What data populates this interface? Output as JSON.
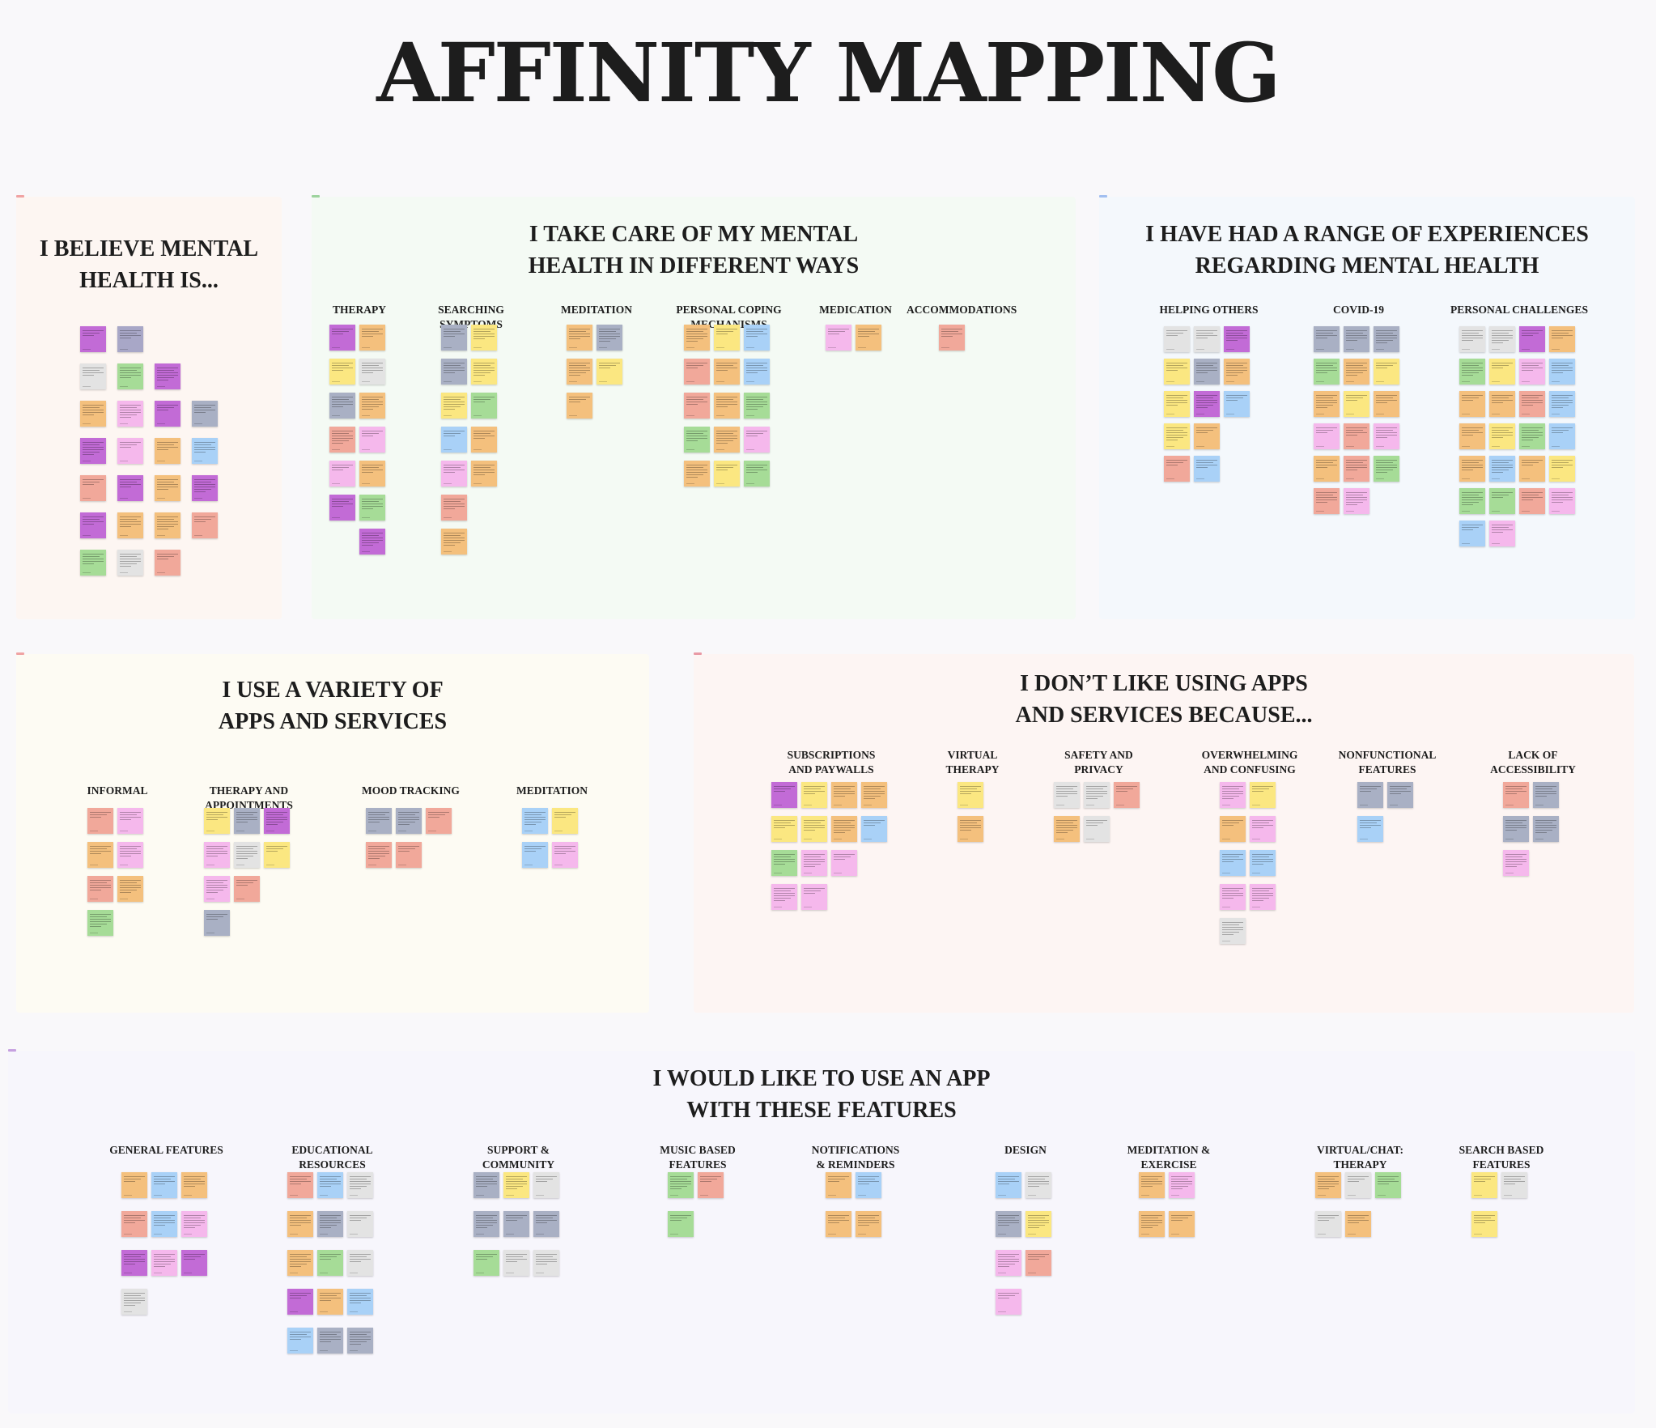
{
  "title": "AFFINITY MAPPING",
  "colors": {
    "purple": "#c26bd6",
    "lavender": "#a8a7c7",
    "slate": "#a9b0c4",
    "yellow": "#fbe781",
    "orange": "#f4c07d",
    "salmon": "#f1a89a",
    "pink": "#f5b8ec",
    "green": "#a6dc97",
    "blue": "#a9d1f7",
    "gray": "#e3e3e3"
  },
  "boards": [
    {
      "id": "believe",
      "title": "I BELIEVE  MENTAL\nHEALTH IS...",
      "bg": "#fdf6f2",
      "tick": "#f0a3a3",
      "columns": [
        {
          "title": "",
          "notes": [
            [
              "purple",
              "lavender"
            ],
            [
              "gray",
              "green",
              "purple"
            ],
            [
              "orange",
              "pink",
              "purple",
              "slate"
            ],
            [
              "purple",
              "pink",
              "orange",
              "blue"
            ],
            [
              "salmon",
              "purple",
              "orange",
              "purple"
            ],
            [
              "purple",
              "orange",
              "orange",
              "salmon"
            ],
            [
              "green",
              "gray",
              "salmon"
            ]
          ]
        }
      ]
    },
    {
      "id": "care",
      "title": "I TAKE CARE OF MY MENTAL\nHEALTH IN DIFFERENT WAYS",
      "bg": "#f4faf4",
      "tick": "#9ed39e",
      "columns": [
        {
          "title": "THERAPY",
          "notes": [
            [
              "purple",
              "orange"
            ],
            [
              "yellow",
              "gray"
            ],
            [
              "slate",
              "orange"
            ],
            [
              "salmon",
              "pink"
            ],
            [
              "pink",
              "orange"
            ],
            [
              "purple",
              "green"
            ],
            [
              "",
              "purple"
            ]
          ]
        },
        {
          "title": "SEARCHING\nSYMPTOMS",
          "notes": [
            [
              "slate",
              "yellow"
            ],
            [
              "slate",
              "yellow"
            ],
            [
              "yellow",
              "green"
            ],
            [
              "blue",
              "orange"
            ],
            [
              "pink",
              "orange"
            ],
            [
              "salmon",
              ""
            ],
            [
              "orange",
              ""
            ]
          ]
        },
        {
          "title": "MEDITATION",
          "notes": [
            [
              "orange",
              "slate"
            ],
            [
              "orange",
              "yellow"
            ],
            [
              "orange",
              ""
            ]
          ]
        },
        {
          "title": "PERSONAL COPING\nMECHANISMS",
          "notes": [
            [
              "orange",
              "yellow",
              "blue"
            ],
            [
              "salmon",
              "orange",
              "blue"
            ],
            [
              "salmon",
              "orange",
              "green"
            ],
            [
              "green",
              "orange",
              "pink"
            ],
            [
              "orange",
              "yellow",
              "green"
            ]
          ]
        },
        {
          "title": "MEDICATION",
          "notes": [
            [
              "pink",
              "orange"
            ]
          ]
        },
        {
          "title": "ACCOMMODATIONS",
          "notes": [
            [
              "salmon"
            ]
          ]
        }
      ]
    },
    {
      "id": "experiences",
      "title": "I HAVE HAD A RANGE OF EXPERIENCES\nREGARDING MENTAL HEALTH",
      "bg": "#f4f8fc",
      "tick": "#a2bff0",
      "columns": [
        {
          "title": "HELPING OTHERS",
          "notes": [
            [
              "gray",
              "gray",
              "purple"
            ],
            [
              "yellow",
              "slate",
              "orange"
            ],
            [
              "yellow",
              "purple",
              "blue"
            ],
            [
              "yellow",
              "orange",
              ""
            ],
            [
              "salmon",
              "blue",
              ""
            ]
          ]
        },
        {
          "title": "COVID-19",
          "notes": [
            [
              "slate",
              "slate",
              "slate"
            ],
            [
              "green",
              "orange",
              "yellow"
            ],
            [
              "orange",
              "yellow",
              "orange"
            ],
            [
              "pink",
              "salmon",
              "pink"
            ],
            [
              "orange",
              "salmon",
              "green"
            ],
            [
              "salmon",
              "pink",
              ""
            ]
          ]
        },
        {
          "title": "PERSONAL CHALLENGES",
          "notes": [
            [
              "gray",
              "gray",
              "purple",
              "orange"
            ],
            [
              "green",
              "yellow",
              "pink",
              "blue"
            ],
            [
              "orange",
              "orange",
              "salmon",
              "blue"
            ],
            [
              "orange",
              "yellow",
              "green",
              "blue"
            ],
            [
              "orange",
              "blue",
              "orange",
              "yellow"
            ],
            [
              "green",
              "green",
              "salmon",
              "pink"
            ],
            [
              "blue",
              "pink",
              "",
              ""
            ]
          ]
        }
      ]
    },
    {
      "id": "apps",
      "title": "I USE A VARIETY OF\nAPPS AND SERVICES",
      "bg": "#fdfbf3",
      "tick": "#f0a3a3",
      "columns": [
        {
          "title": "INFORMAL",
          "notes": [
            [
              "salmon",
              "pink"
            ],
            [
              "orange",
              "pink"
            ],
            [
              "salmon",
              "orange"
            ],
            [
              "green",
              ""
            ]
          ]
        },
        {
          "title": "THERAPY AND\nAPPOINTMENTS",
          "notes": [
            [
              "yellow",
              "slate",
              "purple"
            ],
            [
              "pink",
              "gray",
              "yellow"
            ],
            [
              "pink",
              "salmon",
              ""
            ],
            [
              "slate",
              "",
              ""
            ]
          ]
        },
        {
          "title": "MOOD TRACKING",
          "notes": [
            [
              "slate",
              "slate",
              "salmon"
            ],
            [
              "salmon",
              "salmon",
              ""
            ]
          ]
        },
        {
          "title": "MEDITATION",
          "notes": [
            [
              "blue",
              "yellow"
            ],
            [
              "blue",
              "pink"
            ]
          ]
        }
      ]
    },
    {
      "id": "dislike",
      "title": "I DON’T LIKE USING APPS\nAND SERVICES BECAUSE...",
      "bg": "#fdf5f3",
      "tick": "#e99aa5",
      "columns": [
        {
          "title": "SUBSCRIPTIONS\nAND PAYWALLS",
          "notes": [
            [
              "purple",
              "yellow",
              "orange",
              "orange"
            ],
            [
              "yellow",
              "yellow",
              "orange",
              "blue"
            ],
            [
              "green",
              "pink",
              "pink",
              ""
            ],
            [
              "pink",
              "pink",
              "",
              ""
            ]
          ]
        },
        {
          "title": "VIRTUAL\nTHERAPY",
          "notes": [
            [
              "yellow"
            ],
            [
              "orange"
            ]
          ]
        },
        {
          "title": "SAFETY AND\nPRIVACY",
          "notes": [
            [
              "gray",
              "gray",
              "salmon"
            ],
            [
              "orange",
              "gray",
              ""
            ]
          ]
        },
        {
          "title": "OVERWHELMING\nAND CONFUSING",
          "notes": [
            [
              "pink",
              "yellow"
            ],
            [
              "orange",
              "pink"
            ],
            [
              "blue",
              "blue"
            ],
            [
              "pink",
              "pink"
            ],
            [
              "gray",
              ""
            ]
          ]
        },
        {
          "title": "NONFUNCTIONAL\nFEATURES",
          "notes": [
            [
              "slate",
              "slate"
            ],
            [
              "blue",
              ""
            ]
          ]
        },
        {
          "title": "LACK OF\nACCESSIBILITY",
          "notes": [
            [
              "salmon",
              "slate"
            ],
            [
              "slate",
              "slate"
            ],
            [
              "pink",
              ""
            ]
          ]
        }
      ]
    },
    {
      "id": "features",
      "title": "I WOULD LIKE TO USE AN APP\nWITH THESE FEATURES",
      "bg": "#f7f6fc",
      "tick": "#c6a0e0",
      "columns": [
        {
          "title": "GENERAL FEATURES",
          "notes": [
            [
              "orange",
              "blue",
              "orange"
            ],
            [
              "salmon",
              "blue",
              "pink"
            ],
            [
              "purple",
              "pink",
              "purple"
            ],
            [
              "gray",
              "",
              ""
            ]
          ]
        },
        {
          "title": "EDUCATIONAL\nRESOURCES",
          "notes": [
            [
              "salmon",
              "blue",
              "gray"
            ],
            [
              "orange",
              "slate",
              "gray"
            ],
            [
              "orange",
              "green",
              "gray"
            ],
            [
              "purple",
              "orange",
              "blue"
            ],
            [
              "blue",
              "slate",
              "slate"
            ]
          ]
        },
        {
          "title": "SUPPORT &\nCOMMUNITY",
          "notes": [
            [
              "slate",
              "yellow",
              "gray"
            ],
            [
              "slate",
              "slate",
              "slate"
            ],
            [
              "green",
              "gray",
              "gray"
            ]
          ]
        },
        {
          "title": "MUSIC BASED\nFEATURES",
          "notes": [
            [
              "green",
              "salmon"
            ],
            [
              "green",
              ""
            ]
          ]
        },
        {
          "title": "NOTIFICATIONS\n& REMINDERS",
          "notes": [
            [
              "orange",
              "blue"
            ],
            [
              "orange",
              "orange"
            ]
          ]
        },
        {
          "title": "DESIGN",
          "notes": [
            [
              "blue",
              "gray"
            ],
            [
              "slate",
              "yellow"
            ],
            [
              "pink",
              "salmon"
            ],
            [
              "pink",
              ""
            ]
          ]
        },
        {
          "title": "MEDITATION &\nEXERCISE",
          "notes": [
            [
              "orange",
              "pink"
            ],
            [
              "orange",
              "orange"
            ]
          ]
        },
        {
          "title": "VIRTUAL/CHAT:\nTHERAPY",
          "notes": [
            [
              "orange",
              "gray",
              "green"
            ],
            [
              "gray",
              "orange",
              ""
            ]
          ]
        },
        {
          "title": "SEARCH BASED\nFEATURES",
          "notes": [
            [
              "yellow",
              "gray"
            ],
            [
              "yellow",
              ""
            ]
          ]
        }
      ]
    }
  ]
}
